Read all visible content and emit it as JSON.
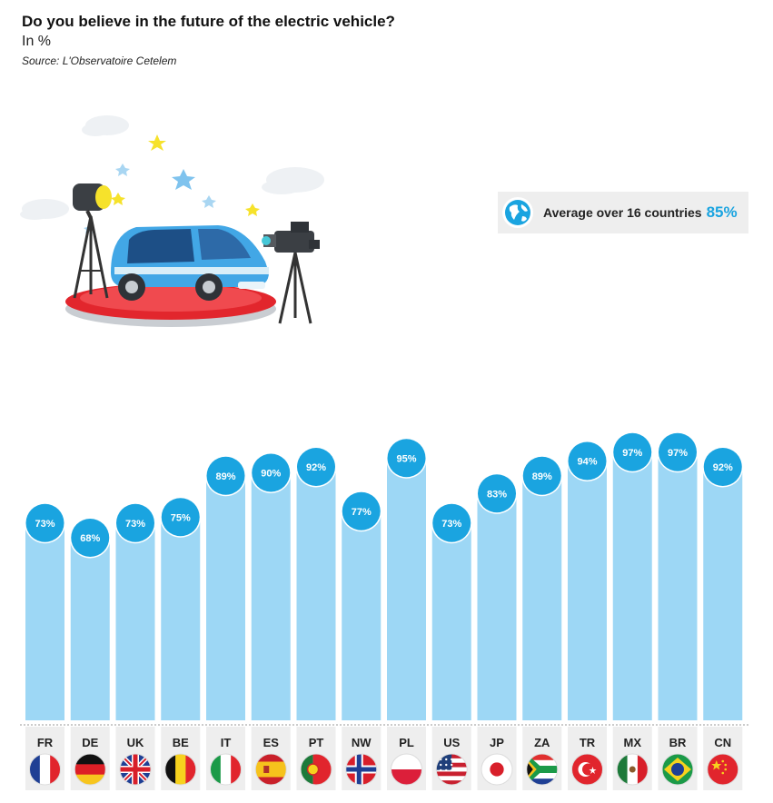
{
  "header": {
    "title": "Do you believe in the future of the electric vehicle?",
    "subtitle": "In %",
    "source": "Source: L'Observatoire Cetelem"
  },
  "average": {
    "label": "Average over 16 countries",
    "value": "85%"
  },
  "colors": {
    "bar": "#9dd7f5",
    "bubble": "#1aa4e0",
    "code_bg": "#eeeeee",
    "accent": "#1aa4e0"
  },
  "chart_data": {
    "type": "bar",
    "title": "Do you believe in the future of the electric vehicle?",
    "ylabel": "In %",
    "ylim": [
      0,
      100
    ],
    "grid": false,
    "categories": [
      "FR",
      "DE",
      "UK",
      "BE",
      "IT",
      "ES",
      "PT",
      "NW",
      "PL",
      "US",
      "JP",
      "ZA",
      "TR",
      "MX",
      "BR",
      "CN"
    ],
    "values": [
      73,
      68,
      73,
      75,
      89,
      90,
      92,
      77,
      95,
      73,
      83,
      89,
      94,
      97,
      97,
      92
    ],
    "data_labels": [
      "73%",
      "68%",
      "73%",
      "75%",
      "89%",
      "90%",
      "92%",
      "77%",
      "95%",
      "73%",
      "83%",
      "89%",
      "94%",
      "97%",
      "97%",
      "92%"
    ],
    "flag_icons": [
      "flag-france-icon",
      "flag-germany-icon",
      "flag-uk-icon",
      "flag-belgium-icon",
      "flag-italy-icon",
      "flag-spain-icon",
      "flag-portugal-icon",
      "flag-norway-icon",
      "flag-poland-icon",
      "flag-usa-icon",
      "flag-japan-icon",
      "flag-south-africa-icon",
      "flag-turkey-icon",
      "flag-mexico-icon",
      "flag-brazil-icon",
      "flag-china-icon"
    ]
  }
}
